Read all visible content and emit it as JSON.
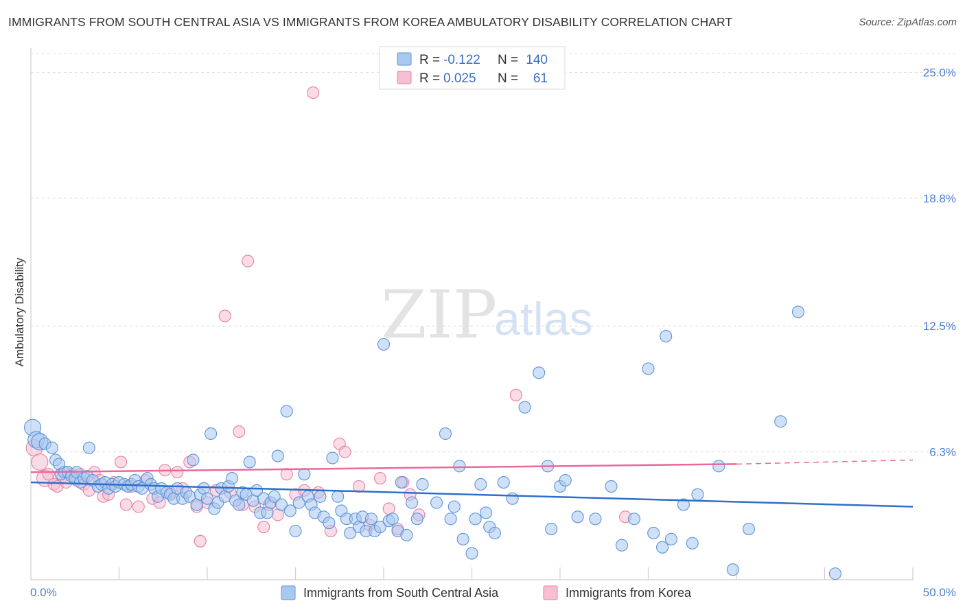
{
  "title": "IMMIGRANTS FROM SOUTH CENTRAL ASIA VS IMMIGRANTS FROM KOREA AMBULATORY DISABILITY CORRELATION CHART",
  "source": "Source: ZipAtlas.com",
  "watermark": {
    "zip": "ZIP",
    "atlas": "atlas"
  },
  "colors": {
    "blue_fill": "#a9c8f0",
    "blue_stroke": "#5b93d9",
    "blue_line": "#2e6fcb",
    "pink_fill": "#f6bfd2",
    "pink_stroke": "#e87fa4",
    "pink_line": "#e8699a",
    "tick_text": "#4a7fd0",
    "grid": "#dcdcdc"
  },
  "legend": {
    "rows": [
      {
        "r_label": "R =",
        "r_value": "-0.122",
        "n_label": "N =",
        "n_value": "140",
        "series": "blue"
      },
      {
        "r_label": "R =",
        "r_value": "0.025",
        "n_label": "N =",
        "n_value": "61",
        "series": "pink"
      }
    ]
  },
  "chart_data": {
    "type": "scatter",
    "title": "IMMIGRANTS FROM SOUTH CENTRAL ASIA VS IMMIGRANTS FROM KOREA AMBULATORY DISABILITY CORRELATION CHART",
    "xlabel": "",
    "ylabel": "Ambulatory Disability",
    "xlim": [
      0,
      50
    ],
    "ylim": [
      0,
      26.2
    ],
    "x_tick_labels": [
      "0.0%",
      "50.0%"
    ],
    "y_ticks": [
      6.3,
      12.5,
      18.8,
      25.0
    ],
    "y_tick_labels": [
      "6.3%",
      "12.5%",
      "18.8%",
      "25.0%"
    ],
    "grid": true,
    "legend_position": "top-center",
    "series": [
      {
        "name": "Immigrants from South Central Asia",
        "color": "#5b93d9",
        "trend": {
          "x": [
            0,
            50
          ],
          "y": [
            4.8,
            3.6
          ]
        },
        "points": [
          [
            0.1,
            7.5
          ],
          [
            0.3,
            6.9
          ],
          [
            0.5,
            6.8
          ],
          [
            0.8,
            6.7
          ],
          [
            1.2,
            6.5
          ],
          [
            1.4,
            5.9
          ],
          [
            1.6,
            5.7
          ],
          [
            1.7,
            5.2
          ],
          [
            1.9,
            5.3
          ],
          [
            2.1,
            5.3
          ],
          [
            2.3,
            5.1
          ],
          [
            2.5,
            5.0
          ],
          [
            2.6,
            5.3
          ],
          [
            2.8,
            4.8
          ],
          [
            3.0,
            5.0
          ],
          [
            3.2,
            5.1
          ],
          [
            3.3,
            6.5
          ],
          [
            3.5,
            4.9
          ],
          [
            3.8,
            4.6
          ],
          [
            4.0,
            4.7
          ],
          [
            4.2,
            4.8
          ],
          [
            4.4,
            4.5
          ],
          [
            4.6,
            4.7
          ],
          [
            4.8,
            4.6
          ],
          [
            5.0,
            4.8
          ],
          [
            5.3,
            4.7
          ],
          [
            5.5,
            4.6
          ],
          [
            5.7,
            4.7
          ],
          [
            5.9,
            4.9
          ],
          [
            6.1,
            4.6
          ],
          [
            6.3,
            4.5
          ],
          [
            6.6,
            5.0
          ],
          [
            6.8,
            4.7
          ],
          [
            7.0,
            4.5
          ],
          [
            7.2,
            4.1
          ],
          [
            7.4,
            4.5
          ],
          [
            7.7,
            4.3
          ],
          [
            7.9,
            4.2
          ],
          [
            8.1,
            4.0
          ],
          [
            8.3,
            4.5
          ],
          [
            8.6,
            4.0
          ],
          [
            8.8,
            4.3
          ],
          [
            9.0,
            4.1
          ],
          [
            9.2,
            5.9
          ],
          [
            9.4,
            3.7
          ],
          [
            9.6,
            4.2
          ],
          [
            9.8,
            4.5
          ],
          [
            10.0,
            4.0
          ],
          [
            10.2,
            7.2
          ],
          [
            10.4,
            3.5
          ],
          [
            10.6,
            3.8
          ],
          [
            10.8,
            4.5
          ],
          [
            11.0,
            4.1
          ],
          [
            11.2,
            4.6
          ],
          [
            11.4,
            5.0
          ],
          [
            11.6,
            3.9
          ],
          [
            11.8,
            3.7
          ],
          [
            12.0,
            4.3
          ],
          [
            12.2,
            4.2
          ],
          [
            12.4,
            5.8
          ],
          [
            12.6,
            3.9
          ],
          [
            12.8,
            4.4
          ],
          [
            13.0,
            3.3
          ],
          [
            13.2,
            4.0
          ],
          [
            13.4,
            3.3
          ],
          [
            13.6,
            3.8
          ],
          [
            13.8,
            4.1
          ],
          [
            14.0,
            6.1
          ],
          [
            14.2,
            3.7
          ],
          [
            14.5,
            8.3
          ],
          [
            14.7,
            3.4
          ],
          [
            15.0,
            2.4
          ],
          [
            15.2,
            3.8
          ],
          [
            15.5,
            5.2
          ],
          [
            15.7,
            4.1
          ],
          [
            15.9,
            3.7
          ],
          [
            16.1,
            3.3
          ],
          [
            16.4,
            4.1
          ],
          [
            16.6,
            3.1
          ],
          [
            16.9,
            2.8
          ],
          [
            17.1,
            6.0
          ],
          [
            17.4,
            4.1
          ],
          [
            17.6,
            3.4
          ],
          [
            17.9,
            3.0
          ],
          [
            18.1,
            2.3
          ],
          [
            18.4,
            3.0
          ],
          [
            18.6,
            2.6
          ],
          [
            18.8,
            3.1
          ],
          [
            19.0,
            2.4
          ],
          [
            19.3,
            3.0
          ],
          [
            19.5,
            2.4
          ],
          [
            19.8,
            2.6
          ],
          [
            20.0,
            11.6
          ],
          [
            20.3,
            2.9
          ],
          [
            20.5,
            3.0
          ],
          [
            20.8,
            2.4
          ],
          [
            21.0,
            4.8
          ],
          [
            21.3,
            2.2
          ],
          [
            21.6,
            3.8
          ],
          [
            21.9,
            3.0
          ],
          [
            22.2,
            4.7
          ],
          [
            23.0,
            3.8
          ],
          [
            23.5,
            7.2
          ],
          [
            23.8,
            3.0
          ],
          [
            24.0,
            3.6
          ],
          [
            24.3,
            5.6
          ],
          [
            24.5,
            2.0
          ],
          [
            25.0,
            1.3
          ],
          [
            25.2,
            3.0
          ],
          [
            25.5,
            4.7
          ],
          [
            25.8,
            3.3
          ],
          [
            26.0,
            2.6
          ],
          [
            26.3,
            2.3
          ],
          [
            26.8,
            4.8
          ],
          [
            27.3,
            4.0
          ],
          [
            28.0,
            8.5
          ],
          [
            28.8,
            10.2
          ],
          [
            29.3,
            5.6
          ],
          [
            29.5,
            2.5
          ],
          [
            30.0,
            4.6
          ],
          [
            30.3,
            4.9
          ],
          [
            31.0,
            3.1
          ],
          [
            32.0,
            3.0
          ],
          [
            32.9,
            4.6
          ],
          [
            33.5,
            1.7
          ],
          [
            34.2,
            3.0
          ],
          [
            35.0,
            10.4
          ],
          [
            35.3,
            2.3
          ],
          [
            35.8,
            1.6
          ],
          [
            36.0,
            12.0
          ],
          [
            36.3,
            2.0
          ],
          [
            37.0,
            3.7
          ],
          [
            37.5,
            1.8
          ],
          [
            37.8,
            4.2
          ],
          [
            39.0,
            5.6
          ],
          [
            39.8,
            0.5
          ],
          [
            40.7,
            2.5
          ],
          [
            42.5,
            7.8
          ],
          [
            43.5,
            13.2
          ],
          [
            45.6,
            0.3
          ]
        ]
      },
      {
        "name": "Immigrants from Korea",
        "color": "#e87fa4",
        "trend": {
          "x": [
            0,
            40
          ],
          "y": [
            5.3,
            5.7
          ]
        },
        "trend_dashed": {
          "x": [
            40,
            50
          ],
          "y": [
            5.7,
            5.9
          ]
        },
        "points": [
          [
            0.2,
            6.5
          ],
          [
            0.5,
            5.8
          ],
          [
            0.8,
            5.0
          ],
          [
            1.0,
            5.2
          ],
          [
            1.3,
            4.7
          ],
          [
            1.5,
            4.6
          ],
          [
            1.8,
            5.1
          ],
          [
            2.0,
            4.8
          ],
          [
            2.3,
            5.2
          ],
          [
            2.6,
            4.9
          ],
          [
            2.8,
            5.2
          ],
          [
            3.0,
            4.7
          ],
          [
            3.3,
            4.4
          ],
          [
            3.6,
            5.3
          ],
          [
            3.9,
            4.9
          ],
          [
            4.1,
            4.1
          ],
          [
            4.4,
            4.2
          ],
          [
            4.7,
            4.8
          ],
          [
            5.1,
            5.8
          ],
          [
            5.4,
            3.7
          ],
          [
            5.7,
            4.6
          ],
          [
            6.1,
            3.6
          ],
          [
            6.5,
            4.9
          ],
          [
            6.9,
            4.0
          ],
          [
            7.3,
            3.8
          ],
          [
            7.6,
            5.4
          ],
          [
            7.9,
            4.3
          ],
          [
            8.3,
            5.3
          ],
          [
            8.6,
            4.5
          ],
          [
            9.0,
            5.8
          ],
          [
            9.4,
            3.6
          ],
          [
            9.6,
            1.9
          ],
          [
            10.0,
            3.8
          ],
          [
            10.5,
            4.4
          ],
          [
            11.0,
            13.0
          ],
          [
            11.3,
            4.3
          ],
          [
            11.8,
            7.3
          ],
          [
            12.0,
            3.7
          ],
          [
            12.3,
            15.7
          ],
          [
            12.7,
            3.6
          ],
          [
            13.2,
            2.6
          ],
          [
            13.5,
            3.7
          ],
          [
            14.0,
            3.2
          ],
          [
            14.5,
            5.2
          ],
          [
            15.0,
            4.2
          ],
          [
            15.5,
            4.4
          ],
          [
            16.0,
            24.0
          ],
          [
            16.3,
            4.3
          ],
          [
            17.0,
            2.4
          ],
          [
            17.5,
            6.7
          ],
          [
            17.8,
            6.3
          ],
          [
            18.6,
            4.6
          ],
          [
            19.2,
            2.7
          ],
          [
            19.8,
            5.0
          ],
          [
            20.3,
            3.5
          ],
          [
            20.8,
            2.5
          ],
          [
            21.1,
            4.8
          ],
          [
            21.5,
            4.2
          ],
          [
            22.0,
            3.2
          ],
          [
            27.5,
            9.1
          ],
          [
            33.7,
            3.1
          ]
        ]
      }
    ]
  },
  "bottom_legend": [
    {
      "label": "Immigrants from South Central Asia",
      "series": "blue"
    },
    {
      "label": "Immigrants from Korea",
      "series": "pink"
    }
  ]
}
